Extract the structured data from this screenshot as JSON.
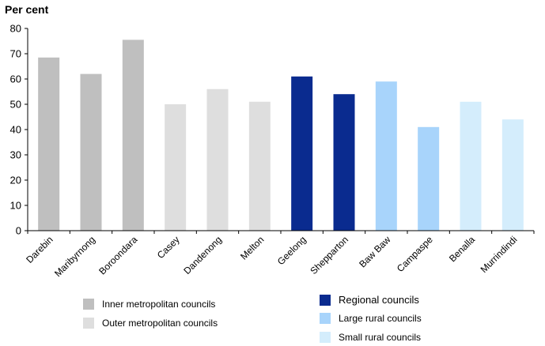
{
  "chart_data": {
    "type": "bar",
    "ylabel": "Per cent",
    "ylim": [
      0,
      80
    ],
    "yticks": [
      0,
      10,
      20,
      30,
      40,
      50,
      60,
      70,
      80
    ],
    "grid": false,
    "categories": [
      "Darebin",
      "Maribyrnong",
      "Boroondara",
      "Casey",
      "Dandenong",
      "Melton",
      "Geelong",
      "Shepparton",
      "Baw Baw",
      "Campaspe",
      "Benalla",
      "Murrindindi"
    ],
    "values": [
      68.5,
      62,
      75.5,
      50,
      56,
      51,
      61,
      54,
      59,
      41,
      51,
      44
    ],
    "groups": [
      "inner",
      "inner",
      "inner",
      "outer",
      "outer",
      "outer",
      "regional",
      "regional",
      "large",
      "large",
      "small",
      "small"
    ],
    "legend": [
      {
        "key": "inner",
        "label": "Inner metropolitan councils",
        "color": "#bfbfbf"
      },
      {
        "key": "outer",
        "label": "Outer metropolitan councils",
        "color": "#dedede"
      },
      {
        "key": "regional",
        "label": "Regional councils",
        "color": "#0a2b8f"
      },
      {
        "key": "large",
        "label": "Large rural councils",
        "color": "#a8d4fb"
      },
      {
        "key": "small",
        "label": "Small rural councils",
        "color": "#d4edfc"
      }
    ]
  }
}
